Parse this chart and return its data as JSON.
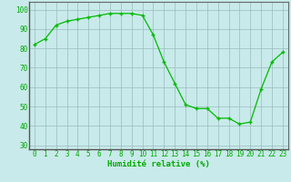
{
  "x": [
    0,
    1,
    2,
    3,
    4,
    5,
    6,
    7,
    8,
    9,
    10,
    11,
    12,
    13,
    14,
    15,
    16,
    17,
    18,
    19,
    20,
    21,
    22,
    23
  ],
  "y": [
    82,
    85,
    92,
    94,
    95,
    96,
    97,
    98,
    98,
    98,
    97,
    87,
    73,
    62,
    51,
    49,
    49,
    44,
    44,
    41,
    42,
    59,
    73,
    78
  ],
  "line_color": "#00bb00",
  "marker_color": "#00bb00",
  "bg_color": "#c8eaea",
  "grid_color": "#99bbbb",
  "xlabel": "Humidité relative (%)",
  "xlabel_color": "#00aa00",
  "ylim": [
    28,
    104
  ],
  "yticks": [
    30,
    40,
    50,
    60,
    70,
    80,
    90,
    100
  ],
  "xlim": [
    -0.5,
    23.5
  ],
  "xticks": [
    0,
    1,
    2,
    3,
    4,
    5,
    6,
    7,
    8,
    9,
    10,
    11,
    12,
    13,
    14,
    15,
    16,
    17,
    18,
    19,
    20,
    21,
    22,
    23
  ],
  "tick_label_fontsize": 5.5,
  "xlabel_fontsize": 6.5,
  "tick_color": "#00aa00",
  "spine_color": "#666666",
  "linewidth": 0.9,
  "markersize": 3.5
}
